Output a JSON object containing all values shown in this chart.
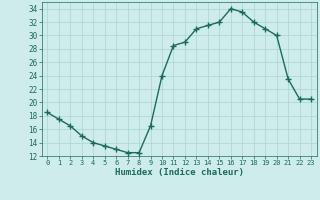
{
  "x": [
    0,
    1,
    2,
    3,
    4,
    5,
    6,
    7,
    8,
    9,
    10,
    11,
    12,
    13,
    14,
    15,
    16,
    17,
    18,
    19,
    20,
    21,
    22,
    23
  ],
  "y": [
    18.5,
    17.5,
    16.5,
    15.0,
    14.0,
    13.5,
    13.0,
    12.5,
    12.5,
    16.5,
    24.0,
    28.5,
    29.0,
    31.0,
    31.5,
    32.0,
    34.0,
    33.5,
    32.0,
    31.0,
    30.0,
    23.5,
    20.5,
    20.5
  ],
  "xlabel": "Humidex (Indice chaleur)",
  "ylim": [
    12,
    35
  ],
  "xlim": [
    -0.5,
    23.5
  ],
  "yticks": [
    12,
    14,
    16,
    18,
    20,
    22,
    24,
    26,
    28,
    30,
    32,
    34
  ],
  "xticks": [
    0,
    1,
    2,
    3,
    4,
    5,
    6,
    7,
    8,
    9,
    10,
    11,
    12,
    13,
    14,
    15,
    16,
    17,
    18,
    19,
    20,
    21,
    22,
    23
  ],
  "line_color": "#1a6b5a",
  "bg_color": "#ceecea",
  "grid_color": "#b0d8d4",
  "marker": "+",
  "marker_size": 4,
  "lw": 1.0
}
